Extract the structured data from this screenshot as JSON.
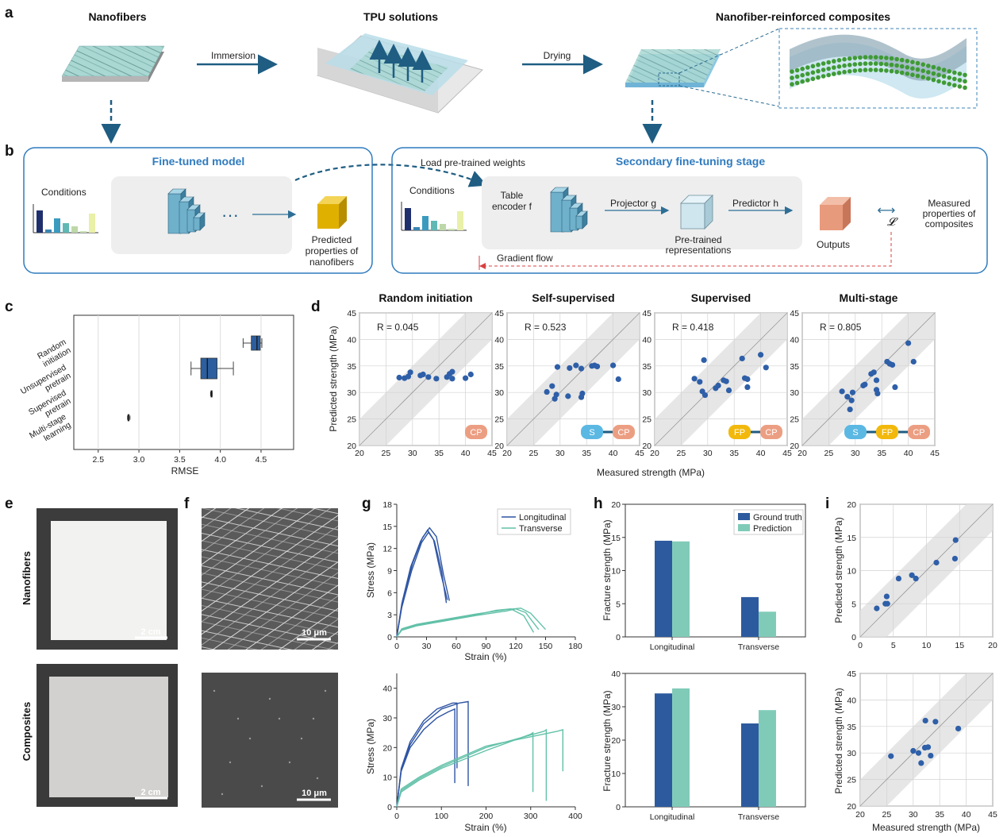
{
  "panel_labels": {
    "a": "a",
    "b": "b",
    "c": "c",
    "d": "d",
    "e": "e",
    "f": "f",
    "g": "g",
    "h": "h",
    "i": "i"
  },
  "panel_a": {
    "title_nanofibers": "Nanofibers",
    "title_tpu": "TPU solutions",
    "title_composites": "Nanofiber-reinforced composites",
    "arrow_immersion": "Immersion",
    "arrow_drying": "Drying"
  },
  "panel_b": {
    "left_title": "Fine-tuned model",
    "left_conditions": "Conditions",
    "left_dots": "···",
    "left_predicted_1": "Predicted",
    "left_predicted_2": "properties of",
    "left_predicted_3": "nanofibers",
    "load_weights": "Load pre-trained weights",
    "right_title": "Secondary fine-tuning stage",
    "right_conditions": "Conditions",
    "table_encoder_1": "Table",
    "table_encoder_2": "encoder f",
    "projector": "Projector g",
    "predictor": "Predictor h",
    "pretrained_1": "Pre-trained",
    "pretrained_2": "representations",
    "outputs": "Outputs",
    "loss_symbol": "𝓛",
    "arrow_symbol": "⟷",
    "measured_1": "Measured",
    "measured_2": "properties of",
    "measured_3": "composites",
    "gradient_flow": "Gradient flow",
    "colors": {
      "frame": "#2f7bbf",
      "cube_yellow": "#e0b000",
      "cube_orange": "#e89a7c",
      "cube_light": "#cfe6ef"
    }
  },
  "panel_c": {
    "xlabel": "RMSE",
    "categories": [
      "Random initiation",
      "Unsupervised pretrain",
      "Supervised pretrain",
      "Multi-stage learning"
    ],
    "cat_lines": [
      [
        "Random",
        "initiation"
      ],
      [
        "Unsupervised",
        "pretrain"
      ],
      [
        "Supervised",
        "pretrain"
      ],
      [
        "Multi-stage",
        "learning"
      ]
    ],
    "xticks": [
      "2.5",
      "3.0",
      "3.5",
      "4.0",
      "4.5"
    ]
  },
  "panel_d": {
    "xlabel": "Measured strength (MPa)",
    "ylabel": "Predicted strength (MPa)",
    "ticks": [
      "20",
      "25",
      "30",
      "35",
      "40",
      "45"
    ],
    "subplots": [
      {
        "title": "Random initiation",
        "r": "R = 0.045",
        "badges": [
          "CP"
        ]
      },
      {
        "title": "Self-supervised",
        "r": "R = 0.523",
        "badges": [
          "S",
          "CP"
        ]
      },
      {
        "title": "Supervised",
        "r": "R = 0.418",
        "badges": [
          "FP",
          "CP"
        ]
      },
      {
        "title": "Multi-stage",
        "r": "R = 0.805",
        "badges": [
          "S",
          "FP",
          "CP"
        ]
      }
    ],
    "badge_colors": {
      "S": "#5bb8e3",
      "FP": "#f2b90c",
      "CP": "#ec9e82"
    }
  },
  "panel_e": {
    "row1": "Nanofibers",
    "row2": "Composites",
    "scale": "2 cm"
  },
  "panel_f": {
    "scale": "10 μm"
  },
  "panel_g": {
    "top": {
      "ylabel": "Stress (MPa)",
      "xlabel": "Strain (%)",
      "yticks": [
        "0",
        "3",
        "6",
        "9",
        "12",
        "15",
        "18"
      ],
      "xticks": [
        "0",
        "30",
        "60",
        "90",
        "120",
        "150",
        "180"
      ],
      "legend": [
        "Longitudinal",
        "Transverse"
      ]
    },
    "bottom": {
      "ylabel": "Stress (MPa)",
      "xlabel": "Strain (%)",
      "yticks": [
        "0",
        "10",
        "20",
        "30",
        "40"
      ],
      "xticks": [
        "0",
        "100",
        "200",
        "300",
        "400"
      ]
    }
  },
  "panel_h": {
    "top": {
      "ylabel": "Fracture strength (MPa)",
      "yticks": [
        "0",
        "5",
        "10",
        "15",
        "20"
      ],
      "categories": [
        "Longitudinal",
        "Transverse"
      ],
      "legend": [
        "Ground truth",
        "Prediction"
      ]
    },
    "bottom": {
      "ylabel": "Fracture strength (MPa)",
      "yticks": [
        "0",
        "10",
        "20",
        "30",
        "40"
      ],
      "categories": [
        "Longitudinal",
        "Transverse"
      ]
    }
  },
  "panel_i": {
    "ylabel": "Predicted strength (MPa)",
    "xlabel": "Measured strength (MPa)",
    "top_ticks": [
      "0",
      "5",
      "10",
      "15",
      "20"
    ],
    "bottom_ticks": [
      "20",
      "25",
      "30",
      "35",
      "40",
      "45"
    ]
  },
  "chart_data": [
    {
      "id": "c",
      "type": "box",
      "xlabel": "RMSE",
      "xlim": [
        2.2,
        4.9
      ],
      "categories": [
        "Random initiation",
        "Unsupervised pretrain",
        "Supervised pretrain",
        "Multi-stage learning"
      ],
      "boxes": [
        {
          "whisker_low": 4.28,
          "q1": 4.38,
          "median": 4.45,
          "q3": 4.49,
          "whisker_high": 4.51
        },
        {
          "whisker_low": 3.64,
          "q1": 3.76,
          "median": 3.84,
          "q3": 3.96,
          "whisker_high": 4.16
        },
        {
          "whisker_low": 3.88,
          "q1": 3.885,
          "median": 3.89,
          "q3": 3.895,
          "whisker_high": 3.9
        },
        {
          "whisker_low": 2.86,
          "q1": 2.865,
          "median": 2.87,
          "q3": 2.88,
          "whisker_high": 2.89
        }
      ]
    },
    {
      "id": "d1",
      "type": "scatter",
      "title": "Random initiation",
      "xlim": [
        20,
        45
      ],
      "ylim": [
        20,
        45
      ],
      "points": [
        [
          27.5,
          32.8
        ],
        [
          28.5,
          32.7
        ],
        [
          29.2,
          33.0
        ],
        [
          29.6,
          33.8
        ],
        [
          31.5,
          33.2
        ],
        [
          32.0,
          33.4
        ],
        [
          33.0,
          32.9
        ],
        [
          34.5,
          32.6
        ],
        [
          36.5,
          32.9
        ],
        [
          37.0,
          33.5
        ],
        [
          37.5,
          33.9
        ],
        [
          37.5,
          32.6
        ],
        [
          40.0,
          32.7
        ],
        [
          41.0,
          33.4
        ]
      ]
    },
    {
      "id": "d2",
      "type": "scatter",
      "title": "Self-supervised",
      "xlim": [
        20,
        45
      ],
      "ylim": [
        20,
        45
      ],
      "points": [
        [
          27.5,
          30.1
        ],
        [
          28.5,
          31.2
        ],
        [
          29.0,
          28.8
        ],
        [
          29.3,
          29.6
        ],
        [
          29.5,
          34.8
        ],
        [
          31.5,
          29.3
        ],
        [
          31.8,
          34.6
        ],
        [
          33.0,
          35.1
        ],
        [
          34.0,
          34.5
        ],
        [
          34.0,
          29.1
        ],
        [
          34.2,
          29.8
        ],
        [
          36.0,
          35.0
        ],
        [
          36.5,
          35.1
        ],
        [
          37.0,
          34.9
        ],
        [
          40.0,
          35.1
        ],
        [
          41.0,
          32.5
        ]
      ]
    },
    {
      "id": "d3",
      "type": "scatter",
      "title": "Supervised",
      "xlim": [
        20,
        45
      ],
      "ylim": [
        20,
        45
      ],
      "points": [
        [
          27.5,
          32.6
        ],
        [
          28.5,
          32.0
        ],
        [
          29.0,
          30.2
        ],
        [
          29.5,
          29.5
        ],
        [
          29.3,
          36.1
        ],
        [
          31.5,
          30.8
        ],
        [
          32.0,
          31.3
        ],
        [
          33.0,
          32.3
        ],
        [
          33.5,
          32.1
        ],
        [
          34.0,
          30.4
        ],
        [
          36.5,
          36.4
        ],
        [
          37.0,
          32.7
        ],
        [
          37.5,
          31.0
        ],
        [
          37.5,
          32.5
        ],
        [
          40.0,
          37.1
        ],
        [
          41.0,
          34.7
        ]
      ]
    },
    {
      "id": "d4",
      "type": "scatter",
      "title": "Multi-stage",
      "xlim": [
        20,
        45
      ],
      "ylim": [
        20,
        45
      ],
      "points": [
        [
          27.5,
          30.2
        ],
        [
          28.5,
          29.2
        ],
        [
          29.0,
          26.8
        ],
        [
          29.3,
          28.5
        ],
        [
          29.5,
          30.0
        ],
        [
          31.5,
          31.3
        ],
        [
          31.8,
          31.5
        ],
        [
          33.0,
          33.5
        ],
        [
          33.5,
          33.8
        ],
        [
          34.0,
          32.3
        ],
        [
          34.0,
          30.5
        ],
        [
          34.2,
          29.8
        ],
        [
          36.0,
          35.8
        ],
        [
          36.5,
          35.4
        ],
        [
          37.0,
          35.2
        ],
        [
          37.5,
          31.0
        ],
        [
          40.0,
          39.3
        ],
        [
          41.0,
          35.8
        ]
      ]
    },
    {
      "id": "g_top",
      "type": "line",
      "xlabel": "Strain (%)",
      "ylabel": "Stress (MPa)",
      "xlim": [
        0,
        180
      ],
      "ylim": [
        0,
        18
      ],
      "series": [
        {
          "name": "Longitudinal",
          "group": "L",
          "points": [
            [
              0,
              0
            ],
            [
              5,
              4
            ],
            [
              15,
              9
            ],
            [
              25,
              12.8
            ],
            [
              32,
              14.2
            ],
            [
              38,
              13.0
            ],
            [
              45,
              9
            ],
            [
              50,
              4.6
            ]
          ]
        },
        {
          "group": "L",
          "points": [
            [
              0,
              0
            ],
            [
              6,
              5
            ],
            [
              16,
              10
            ],
            [
              26,
              13.5
            ],
            [
              33,
              14.8
            ],
            [
              40,
              13.6
            ],
            [
              47,
              8.5
            ],
            [
              53,
              4.9
            ]
          ]
        },
        {
          "group": "L",
          "points": [
            [
              0,
              0
            ],
            [
              5,
              4.5
            ],
            [
              14,
              9.5
            ],
            [
              24,
              13.0
            ],
            [
              31,
              14.5
            ],
            [
              37,
              13.2
            ],
            [
              44,
              8.8
            ],
            [
              51,
              5.0
            ]
          ]
        },
        {
          "name": "Transverse",
          "group": "T",
          "points": [
            [
              0,
              0
            ],
            [
              5,
              1.1
            ],
            [
              20,
              1.7
            ],
            [
              50,
              2.4
            ],
            [
              80,
              3.1
            ],
            [
              110,
              3.7
            ],
            [
              125,
              3.9
            ],
            [
              135,
              3.2
            ],
            [
              150,
              1.0
            ]
          ]
        },
        {
          "group": "T",
          "points": [
            [
              0,
              0
            ],
            [
              5,
              1.0
            ],
            [
              20,
              1.6
            ],
            [
              50,
              2.3
            ],
            [
              80,
              3.0
            ],
            [
              100,
              3.6
            ],
            [
              115,
              3.8
            ],
            [
              128,
              2.9
            ],
            [
              138,
              0.6
            ]
          ]
        },
        {
          "group": "T",
          "points": [
            [
              0,
              0
            ],
            [
              5,
              0.9
            ],
            [
              20,
              1.5
            ],
            [
              50,
              2.2
            ],
            [
              80,
              2.9
            ],
            [
              110,
              3.5
            ],
            [
              120,
              3.8
            ],
            [
              130,
              3.3
            ],
            [
              143,
              1.0
            ]
          ]
        }
      ]
    },
    {
      "id": "g_bottom",
      "type": "line",
      "xlabel": "Strain (%)",
      "ylabel": "Stress (MPa)",
      "xlim": [
        0,
        400
      ],
      "ylim": [
        0,
        45
      ],
      "series": [
        {
          "group": "L",
          "points": [
            [
              0,
              0
            ],
            [
              10,
              12
            ],
            [
              30,
              20
            ],
            [
              60,
              26
            ],
            [
              90,
              30
            ],
            [
              115,
              32
            ],
            [
              130,
              33
            ],
            [
              130,
              8
            ]
          ]
        },
        {
          "group": "L",
          "points": [
            [
              0,
              0
            ],
            [
              10,
              13
            ],
            [
              30,
              22
            ],
            [
              60,
              29
            ],
            [
              90,
              33
            ],
            [
              125,
              35
            ],
            [
              135,
              35
            ],
            [
              135,
              13
            ]
          ]
        },
        {
          "group": "L",
          "points": [
            [
              0,
              0
            ],
            [
              10,
              12.5
            ],
            [
              30,
              21
            ],
            [
              60,
              28
            ],
            [
              100,
              33
            ],
            [
              140,
              35
            ],
            [
              160,
              35.5
            ],
            [
              160,
              7
            ]
          ]
        },
        {
          "group": "T",
          "points": [
            [
              0,
              0
            ],
            [
              10,
              5
            ],
            [
              50,
              9
            ],
            [
              100,
              13
            ],
            [
              200,
              19
            ],
            [
              300,
              24.5
            ],
            [
              305,
              25
            ],
            [
              305,
              5
            ]
          ]
        },
        {
          "group": "T",
          "points": [
            [
              0,
              0
            ],
            [
              10,
              5.5
            ],
            [
              50,
              9.5
            ],
            [
              100,
              13.5
            ],
            [
              200,
              20
            ],
            [
              330,
              25.5
            ],
            [
              335,
              26
            ],
            [
              335,
              2
            ]
          ]
        },
        {
          "group": "T",
          "points": [
            [
              0,
              0
            ],
            [
              10,
              6
            ],
            [
              50,
              10
            ],
            [
              100,
              14
            ],
            [
              200,
              20.5
            ],
            [
              360,
              25.5
            ],
            [
              372,
              26
            ],
            [
              372,
              12
            ]
          ]
        }
      ]
    },
    {
      "id": "h_top",
      "type": "bar",
      "ylabel": "Fracture strength (MPa)",
      "ylim": [
        0,
        20
      ],
      "categories": [
        "Longitudinal",
        "Transverse"
      ],
      "series": [
        {
          "name": "Ground truth",
          "values": [
            14.5,
            6.0
          ]
        },
        {
          "name": "Prediction",
          "values": [
            14.4,
            3.8
          ]
        }
      ]
    },
    {
      "id": "h_bottom",
      "type": "bar",
      "ylabel": "Fracture strength (MPa)",
      "ylim": [
        0,
        40
      ],
      "categories": [
        "Longitudinal",
        "Transverse"
      ],
      "series": [
        {
          "name": "Ground truth",
          "values": [
            34.0,
            25.0
          ]
        },
        {
          "name": "Prediction",
          "values": [
            35.5,
            29.0
          ]
        }
      ]
    },
    {
      "id": "i_top",
      "type": "scatter",
      "xlim": [
        0,
        20
      ],
      "ylim": [
        0,
        20
      ],
      "points": [
        [
          2.5,
          4.3
        ],
        [
          3.8,
          5.0
        ],
        [
          4.0,
          6.1
        ],
        [
          4.1,
          5.0
        ],
        [
          5.8,
          8.8
        ],
        [
          7.8,
          9.3
        ],
        [
          8.4,
          8.8
        ],
        [
          11.5,
          11.2
        ],
        [
          14.3,
          11.8
        ],
        [
          14.4,
          14.6
        ]
      ]
    },
    {
      "id": "i_bottom",
      "type": "scatter",
      "xlim": [
        20,
        45
      ],
      "ylim": [
        20,
        45
      ],
      "points": [
        [
          25.8,
          29.4
        ],
        [
          30.0,
          30.4
        ],
        [
          31.0,
          30.0
        ],
        [
          31.5,
          28.1
        ],
        [
          32.2,
          31.0
        ],
        [
          32.3,
          36.1
        ],
        [
          32.8,
          31.1
        ],
        [
          33.3,
          29.5
        ],
        [
          34.2,
          35.9
        ],
        [
          38.5,
          34.6
        ]
      ]
    }
  ]
}
